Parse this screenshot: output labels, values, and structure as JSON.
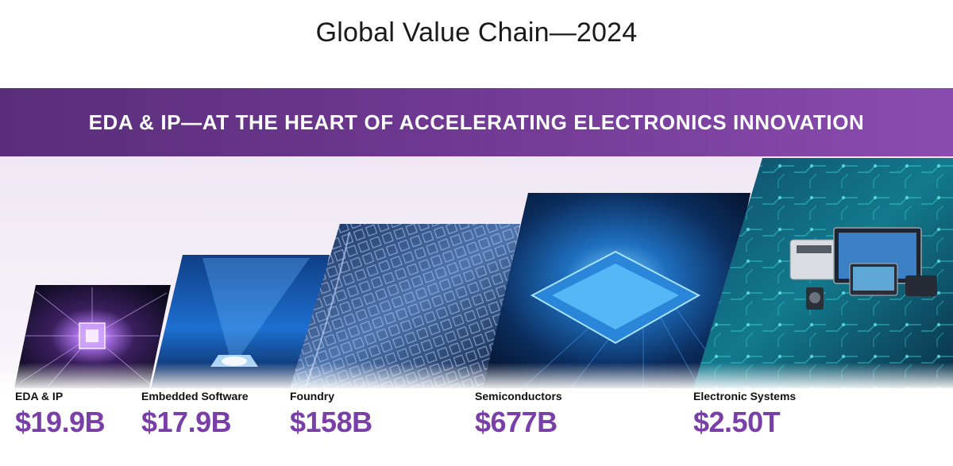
{
  "page": {
    "title": "Global Value Chain—2024",
    "banner": "EDA & IP—AT THE HEART OF ACCELERATING ELECTRONICS INNOVATION"
  },
  "segments": [
    {
      "label": "EDA & IP",
      "value": "$19.9B",
      "image": "chip-burst-icon"
    },
    {
      "label": "Embedded Software",
      "value": "$17.9B",
      "image": "light-beam-chip-icon"
    },
    {
      "label": "Foundry",
      "value": "$158B",
      "image": "silicon-wafer-icon"
    },
    {
      "label": "Semiconductors",
      "value": "$677B",
      "image": "semiconductor-chip-icon"
    },
    {
      "label": "Electronic Systems",
      "value": "$2.50T",
      "image": "electronic-devices-icon"
    }
  ],
  "colors": {
    "banner_start": "#5a2d7a",
    "banner_end": "#8a4cb0",
    "value_text": "#7a3ea8"
  }
}
